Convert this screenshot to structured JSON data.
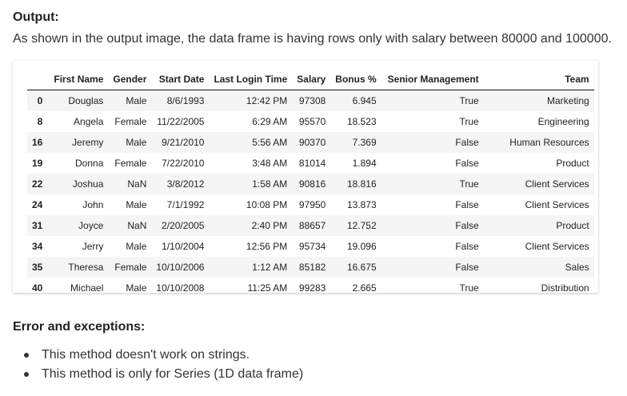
{
  "output_heading": "Output:",
  "output_text": "As shown in the output image, the data frame is having rows only with salary between 80000 and 100000.",
  "table": {
    "columns": [
      "",
      "First Name",
      "Gender",
      "Start Date",
      "Last Login Time",
      "Salary",
      "Bonus %",
      "Senior Management",
      "Team"
    ],
    "rows": [
      [
        "0",
        "Douglas",
        "Male",
        "8/6/1993",
        "12:42 PM",
        "97308",
        "6.945",
        "True",
        "Marketing"
      ],
      [
        "8",
        "Angela",
        "Female",
        "11/22/2005",
        "6:29 AM",
        "95570",
        "18.523",
        "True",
        "Engineering"
      ],
      [
        "16",
        "Jeremy",
        "Male",
        "9/21/2010",
        "5:56 AM",
        "90370",
        "7.369",
        "False",
        "Human Resources"
      ],
      [
        "19",
        "Donna",
        "Female",
        "7/22/2010",
        "3:48 AM",
        "81014",
        "1.894",
        "False",
        "Product"
      ],
      [
        "22",
        "Joshua",
        "NaN",
        "3/8/2012",
        "1:58 AM",
        "90816",
        "18.816",
        "True",
        "Client Services"
      ],
      [
        "24",
        "John",
        "Male",
        "7/1/1992",
        "10:08 PM",
        "97950",
        "13.873",
        "False",
        "Client Services"
      ],
      [
        "31",
        "Joyce",
        "NaN",
        "2/20/2005",
        "2:40 PM",
        "88657",
        "12.752",
        "False",
        "Product"
      ],
      [
        "34",
        "Jerry",
        "Male",
        "1/10/2004",
        "12:56 PM",
        "95734",
        "19.096",
        "False",
        "Client Services"
      ],
      [
        "35",
        "Theresa",
        "Female",
        "10/10/2006",
        "1:12 AM",
        "85182",
        "16.675",
        "False",
        "Sales"
      ],
      [
        "40",
        "Michael",
        "Male",
        "10/10/2008",
        "11:25 AM",
        "99283",
        "2.665",
        "True",
        "Distribution"
      ]
    ]
  },
  "errors_heading": "Error and exceptions:",
  "bullets": [
    "This method doesn't work on strings.",
    "This method is only for Series (1D data frame)"
  ]
}
